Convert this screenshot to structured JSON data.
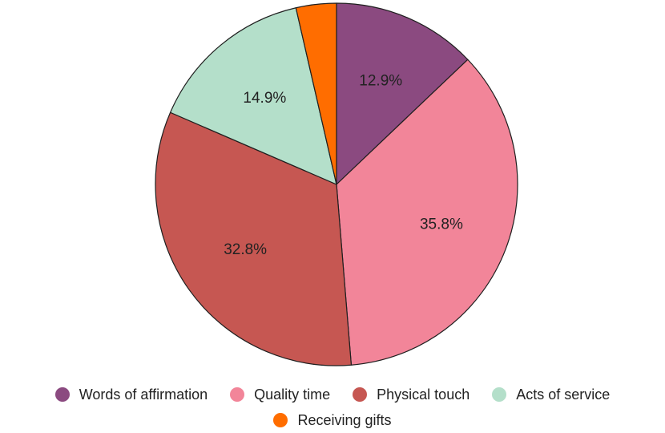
{
  "chart_data": {
    "type": "pie",
    "title": "",
    "slices": [
      {
        "name": "Words of affirmation",
        "value": 12.9,
        "label": "12.9%",
        "color": "#8b4a80"
      },
      {
        "name": "Quality time",
        "value": 35.8,
        "label": "35.8%",
        "color": "#f28599"
      },
      {
        "name": "Physical touch",
        "value": 32.8,
        "label": "32.8%",
        "color": "#c65752"
      },
      {
        "name": "Acts of service",
        "value": 14.9,
        "label": "14.9%",
        "color": "#b4dfca"
      },
      {
        "name": "Receiving gifts",
        "value": 3.6,
        "label": "",
        "color": "#ff6d00"
      }
    ],
    "legend_position": "bottom",
    "legend_rows": [
      [
        "Words of affirmation",
        "Quality time",
        "Physical touch",
        "Acts of service"
      ],
      [
        "Receiving gifts"
      ]
    ]
  }
}
